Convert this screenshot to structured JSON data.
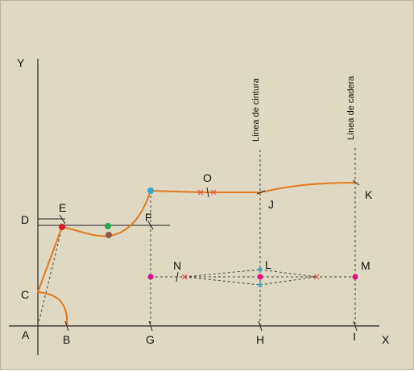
{
  "axes": {
    "y_label": "Y",
    "x_label": "X"
  },
  "points": {
    "A": "A",
    "B": "B",
    "C": "C",
    "D": "D",
    "E": "E",
    "F": "F",
    "G": "G",
    "H": "H",
    "I": "I",
    "J": "J",
    "K": "K",
    "L": "L",
    "M": "M",
    "N": "N",
    "O": "O"
  },
  "guide_lines": {
    "waist": "Línea de cintura",
    "hip": "Línea de cadera"
  },
  "colors": {
    "background": "#dfd8c2",
    "curve": "#e07b20",
    "line": "#222222",
    "dashed": "#444444",
    "magenta": "#e0108a",
    "cyan": "#3aa6c8",
    "red": "#d42020",
    "green": "#22a84a",
    "brown": "#8b5a4a",
    "cross": "#e05050"
  }
}
